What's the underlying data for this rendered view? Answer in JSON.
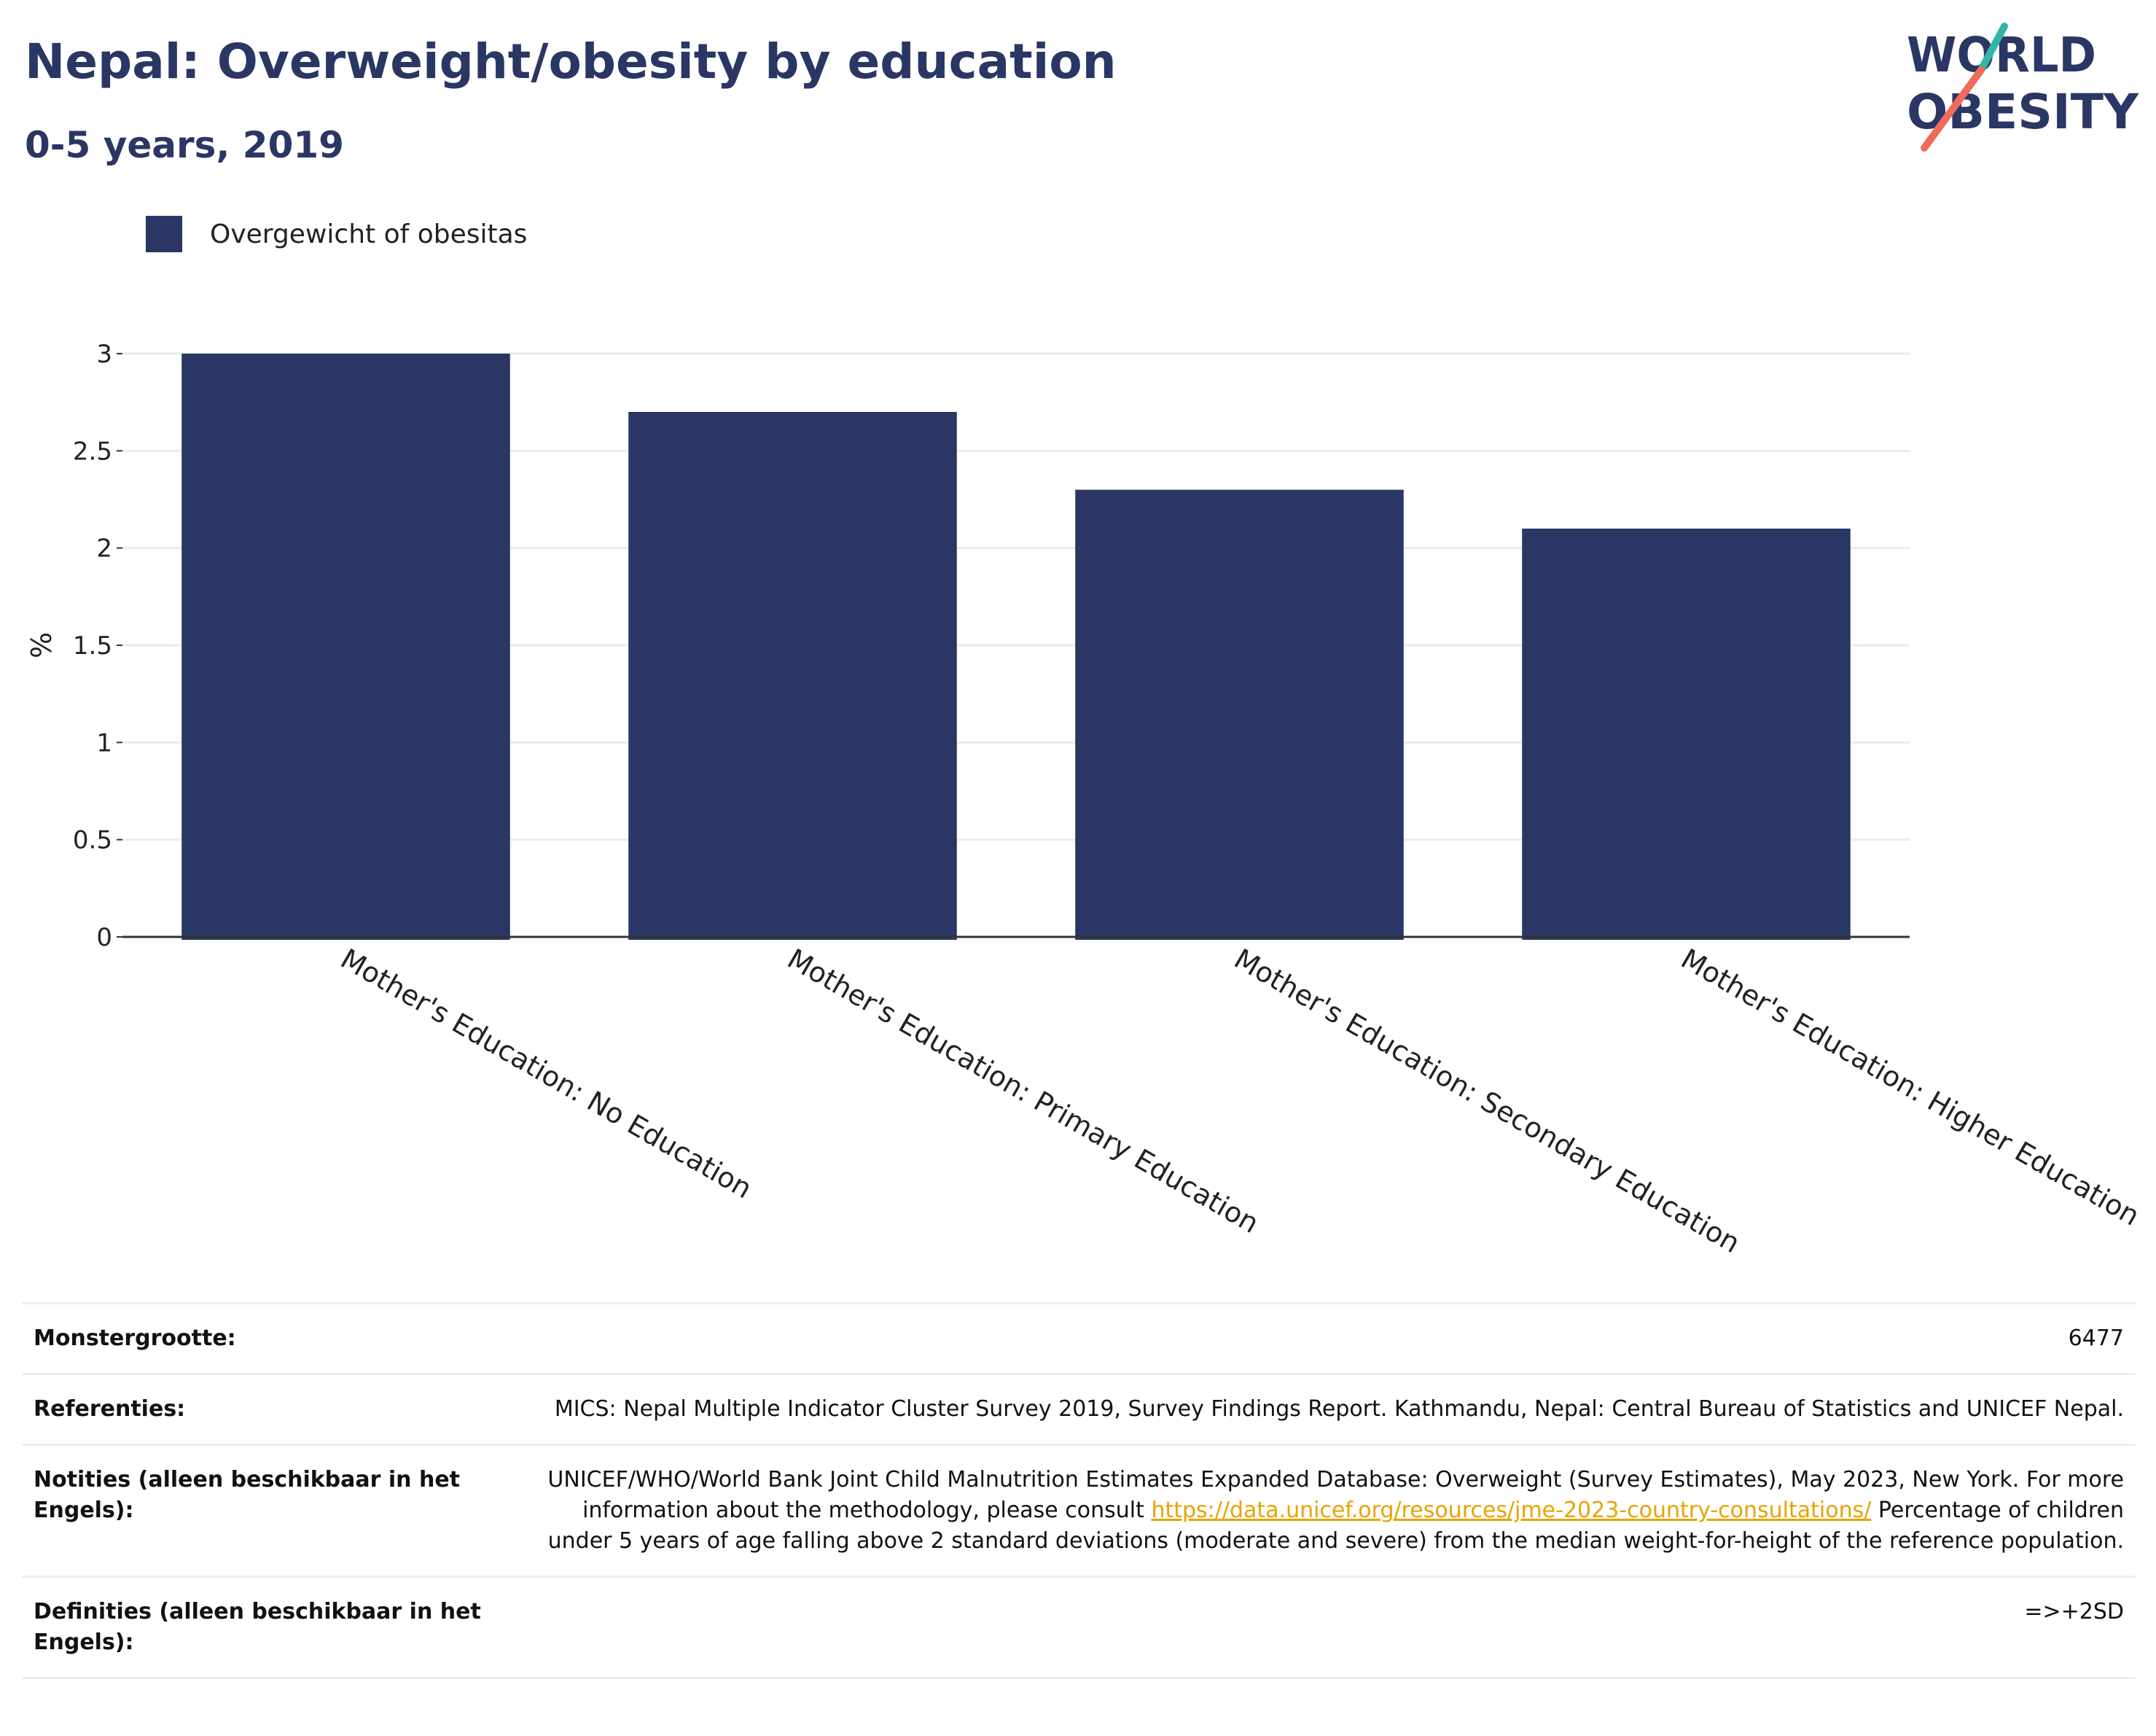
{
  "header": {
    "title": "Nepal: Overweight/obesity by education",
    "subtitle": "0-5 years, 2019",
    "logo_line1": "WORLD",
    "logo_line2": "OBESITY"
  },
  "legend": {
    "label": "Overgewicht of obesitas",
    "color": "#2a3663"
  },
  "chart_data": {
    "type": "bar",
    "categories": [
      "Mother's Education: No Education",
      "Mother's Education: Primary Education",
      "Mother's Education: Secondary Education",
      "Mother's Education: Higher Education"
    ],
    "series": [
      {
        "name": "Overgewicht of obesitas",
        "values": [
          3.0,
          2.7,
          2.3,
          2.1
        ]
      }
    ],
    "ylabel": "%",
    "ylim": [
      0,
      3
    ],
    "yticks": [
      "0",
      "0.5",
      "1",
      "1.5",
      "2",
      "2.5",
      "3"
    ],
    "grid": true,
    "legend_position": "top-left",
    "bar_color": "#2a3663"
  },
  "info": {
    "sample_label": "Monstergrootte:",
    "sample_value": "6477",
    "refs_label": "Referenties:",
    "refs_value": "MICS: Nepal Multiple Indicator Cluster Survey 2019, Survey Findings Report. Kathmandu, Nepal: Central Bureau of Statistics and UNICEF Nepal.",
    "notes_label": "Notities (alleen beschikbaar in het Engels):",
    "notes_text_1": "UNICEF/WHO/World Bank Joint Child Malnutrition Estimates Expanded Database: Overweight (Survey Estimates), May 2023, New York. For more information about the methodology, please consult ",
    "notes_link": "https://data.unicef.org/resources/jme-2023-country-consultations/",
    "notes_text_2": " Percentage of children under 5 years of age falling above 2 standard deviations (moderate and severe) from the median weight-for-height of the reference population.",
    "defs_label": "Definities (alleen beschikbaar in het Engels):",
    "defs_value": "=>+2SD"
  }
}
